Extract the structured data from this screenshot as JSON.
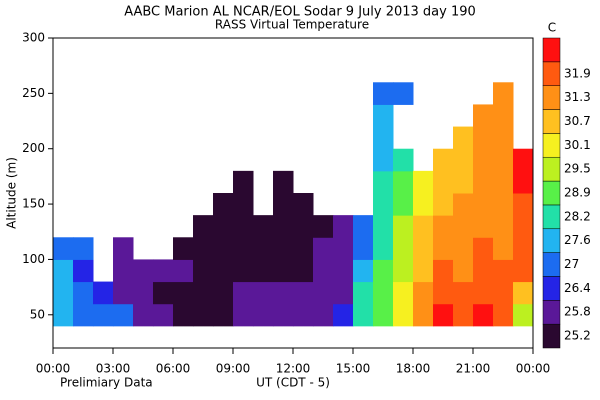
{
  "chart_data": {
    "type": "heatmap",
    "title": "AABC Marion AL  NCAR/EOL Sodar   9 July 2013  day 190",
    "subtitle": "RASS Virtual Temperature",
    "ylabel": "Altitude (m)",
    "xlabel": "UT  (CDT - 5)",
    "note": "Prelimiary Data",
    "colorbar_label": "C",
    "x": [
      0.5,
      1.5,
      2.5,
      3.5,
      4.5,
      5.5,
      6.5,
      7.5,
      8.5,
      9.5,
      10.5,
      11.5,
      12.5,
      13.5,
      14.5,
      15.5,
      16.5,
      17.5,
      18.5,
      19.5,
      20.5,
      21.5,
      22.5,
      23.5
    ],
    "y": [
      50,
      70,
      90,
      110,
      130,
      150,
      170,
      190,
      210,
      230,
      250,
      270
    ],
    "values": [
      [
        27.4,
        27.3,
        27.1,
        26.8,
        null,
        null,
        null,
        null,
        null,
        null,
        null,
        null
      ],
      [
        26.9,
        26.6,
        26.2,
        26.7,
        null,
        null,
        null,
        null,
        null,
        null,
        null,
        null
      ],
      [
        26.5,
        26.3,
        null,
        null,
        null,
        null,
        null,
        null,
        null,
        null,
        null,
        null
      ],
      [
        26.5,
        25.6,
        25.5,
        25.6,
        null,
        null,
        null,
        null,
        null,
        null,
        null,
        null
      ],
      [
        25.6,
        25.5,
        25.4,
        null,
        null,
        null,
        null,
        null,
        null,
        null,
        null,
        null
      ],
      [
        25.5,
        25.0,
        25.3,
        null,
        null,
        null,
        null,
        null,
        null,
        null,
        null,
        null
      ],
      [
        25.0,
        25.0,
        25.5,
        25.0,
        null,
        null,
        null,
        null,
        null,
        null,
        null,
        null
      ],
      [
        25.0,
        25.1,
        25.0,
        25.1,
        25.0,
        null,
        null,
        null,
        null,
        null,
        null,
        null
      ],
      [
        25.0,
        24.9,
        25.0,
        25.0,
        25.0,
        25.1,
        null,
        null,
        null,
        null,
        null,
        null
      ],
      [
        25.6,
        25.5,
        25.0,
        25.0,
        24.9,
        25.0,
        25.0,
        null,
        null,
        null,
        null,
        null
      ],
      [
        25.6,
        25.3,
        25.1,
        25.0,
        25.0,
        null,
        null,
        null,
        null,
        null,
        null,
        null
      ],
      [
        25.6,
        25.6,
        25.0,
        25.0,
        25.1,
        25.0,
        25.0,
        null,
        null,
        null,
        null,
        null
      ],
      [
        25.6,
        25.5,
        25.0,
        25.0,
        25.0,
        25.0,
        null,
        null,
        null,
        null,
        null,
        null
      ],
      [
        25.7,
        25.6,
        25.6,
        25.5,
        25.0,
        null,
        null,
        null,
        null,
        null,
        null,
        null
      ],
      [
        26.0,
        25.7,
        25.6,
        25.6,
        25.5,
        null,
        null,
        null,
        null,
        null,
        null,
        null
      ],
      [
        28.0,
        27.6,
        27.0,
        26.5,
        26.4,
        null,
        null,
        null,
        null,
        null,
        null,
        null
      ],
      [
        28.6,
        28.4,
        28.3,
        28.0,
        27.8,
        27.7,
        27.7,
        27.5,
        27.2,
        27.0,
        26.9,
        null
      ],
      [
        30.0,
        29.7,
        29.4,
        29.1,
        28.9,
        28.5,
        28.3,
        28.1,
        null,
        null,
        26.6,
        null
      ],
      [
        31.2,
        30.8,
        30.5,
        30.3,
        30.1,
        29.8,
        29.5,
        null,
        null,
        null,
        null,
        null
      ],
      [
        32.0,
        31.6,
        31.4,
        31.0,
        30.8,
        30.5,
        30.4,
        30.2,
        null,
        null,
        null,
        null
      ],
      [
        31.5,
        31.3,
        31.1,
        30.9,
        30.8,
        30.7,
        30.5,
        30.4,
        30.6,
        null,
        null,
        null
      ],
      [
        31.9,
        31.7,
        31.5,
        31.3,
        31.0,
        30.9,
        30.8,
        30.7,
        30.7,
        30.8,
        null,
        null
      ],
      [
        31.6,
        31.5,
        31.4,
        31.2,
        31.0,
        30.9,
        30.8,
        30.8,
        30.7,
        30.8,
        30.9,
        null
      ],
      [
        29.0,
        30.5,
        31.5,
        31.8,
        31.6,
        31.7,
        32.0,
        32.2,
        null,
        null,
        null,
        null
      ]
    ],
    "xlim": [
      0,
      24
    ],
    "xticks": [
      {
        "value": 0,
        "label": "00:00"
      },
      {
        "value": 3,
        "label": "03:00"
      },
      {
        "value": 6,
        "label": "06:00"
      },
      {
        "value": 9,
        "label": "09:00"
      },
      {
        "value": 12,
        "label": "12:00"
      },
      {
        "value": 15,
        "label": "15:00"
      },
      {
        "value": 18,
        "label": "18:00"
      },
      {
        "value": 21,
        "label": "21:00"
      },
      {
        "value": 24,
        "label": "00:00"
      }
    ],
    "ylim": [
      20,
      300
    ],
    "yticks": [
      50,
      100,
      150,
      200,
      250,
      300
    ],
    "levels": [
      25.2,
      25.8,
      26.4,
      27.0,
      27.6,
      28.2,
      28.9,
      29.5,
      30.1,
      30.7,
      31.3,
      31.9
    ],
    "colors": [
      "#2a0830",
      "#5a1898",
      "#2424e6",
      "#1c6cf0",
      "#22b4f0",
      "#22e0a8",
      "#58f048",
      "#bcf020",
      "#f6f020",
      "#ffc020",
      "#ff9016",
      "#ff5a10",
      "#ff1010"
    ]
  }
}
